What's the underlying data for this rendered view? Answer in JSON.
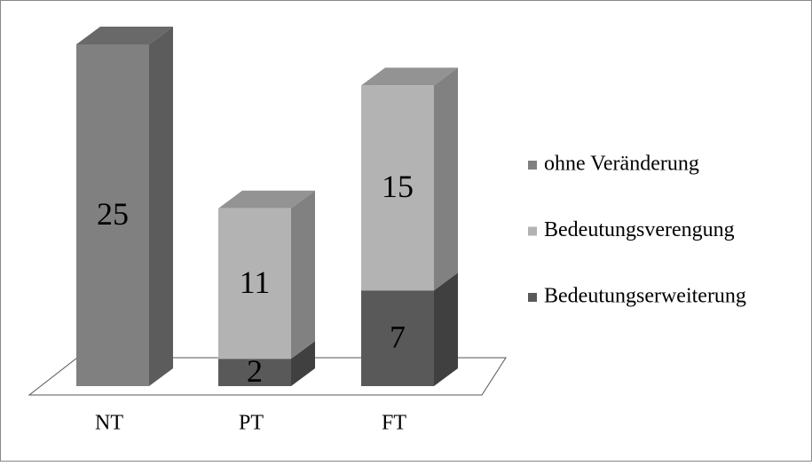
{
  "chart_data": {
    "type": "bar3d-stacked",
    "categories": [
      "NT",
      "PT",
      "FT"
    ],
    "series": [
      {
        "name": "ohne Veränderung",
        "color": "#808080",
        "values": [
          25,
          null,
          null
        ]
      },
      {
        "name": "Bedeutungsverengung",
        "color": "#b3b3b3",
        "values": [
          null,
          11,
          15
        ]
      },
      {
        "name": "Bedeutungserweiterung",
        "color": "#595959",
        "values": [
          null,
          2,
          7
        ]
      }
    ],
    "legend": "right"
  }
}
